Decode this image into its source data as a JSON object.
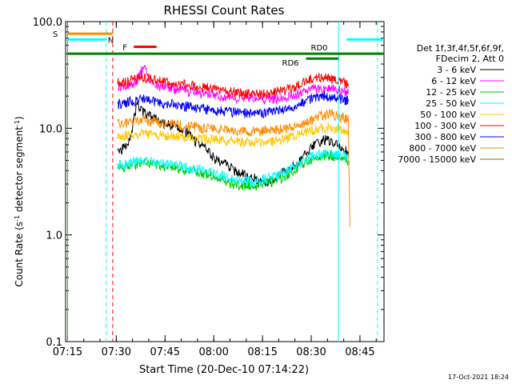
{
  "chart_data": {
    "type": "line",
    "title": "RHESSI Count Rates",
    "xlabel": "Start Time (20-Dec-10 07:14:22)",
    "ylabel": "Count Rate (s",
    "ylabel_sup": "-1",
    "ylabel_tail": " detector segment",
    "ylabel_sup2": "-1",
    "ylabel_close": ")",
    "yscale": "log",
    "ylim": [
      0.1,
      100
    ],
    "xlim_minutes": [
      0,
      98
    ],
    "yticks": [
      {
        "label": "0.1",
        "value": 0.1
      },
      {
        "label": "1.0",
        "value": 1
      },
      {
        "label": "10.0",
        "value": 10
      },
      {
        "label": "100.0",
        "value": 100
      }
    ],
    "xticks": [
      {
        "label": "07:15",
        "t": 0.6
      },
      {
        "label": "07:30",
        "t": 15.6
      },
      {
        "label": "07:45",
        "t": 30.6
      },
      {
        "label": "08:00",
        "t": 45.6
      },
      {
        "label": "08:15",
        "t": 60.6
      },
      {
        "label": "08:30",
        "t": 75.6
      },
      {
        "label": "08:45",
        "t": 90.6
      }
    ],
    "legend_header": [
      "Det 1f,3f,4f,5f,6f,9f,",
      "FDecim 2, Att 0"
    ],
    "series": [
      {
        "name": "3 - 6 keV",
        "color": "#000000",
        "t": [
          16,
          18,
          20,
          22,
          24,
          26,
          28,
          30,
          32,
          34,
          36,
          38,
          40,
          42,
          44,
          46,
          48,
          50,
          52,
          54,
          56,
          58,
          60,
          62,
          64,
          66,
          68,
          70,
          72,
          74,
          76,
          78,
          80,
          82,
          84,
          86,
          87
        ],
        "values": [
          6.2,
          6.5,
          8.5,
          17,
          14,
          13,
          12,
          11,
          11,
          10,
          9.5,
          9,
          7.5,
          7,
          6,
          5.2,
          4.8,
          4.5,
          4,
          3.8,
          3.5,
          3.4,
          3.3,
          3.2,
          3.4,
          3.7,
          4,
          4.4,
          5,
          5.8,
          6.8,
          7.5,
          7.8,
          7.3,
          6.8,
          6.2,
          6
        ]
      },
      {
        "name": "6 - 12 keV",
        "color": "#ff00ff",
        "t": [
          16,
          18,
          20,
          22,
          24,
          26,
          28,
          30,
          32,
          34,
          36,
          38,
          40,
          42,
          44,
          46,
          48,
          50,
          52,
          54,
          56,
          58,
          60,
          62,
          64,
          66,
          68,
          70,
          72,
          74,
          76,
          78,
          80,
          82,
          84,
          86,
          87
        ],
        "values": [
          24,
          25,
          26,
          28,
          38,
          27,
          25,
          24,
          24,
          23,
          23,
          22,
          22,
          21,
          21,
          20,
          20,
          20,
          19,
          19,
          19,
          19,
          18.5,
          18.5,
          19,
          19,
          20,
          20,
          21,
          22,
          23,
          24,
          24,
          24,
          23,
          22,
          21
        ]
      },
      {
        "name": "12 - 25 keV",
        "color": "#00c800",
        "t": [
          16,
          18,
          20,
          22,
          24,
          26,
          28,
          30,
          32,
          34,
          36,
          38,
          40,
          42,
          44,
          46,
          48,
          50,
          52,
          54,
          56,
          58,
          60,
          62,
          64,
          66,
          68,
          70,
          72,
          74,
          76,
          78,
          80,
          82,
          84,
          86,
          87
        ],
        "values": [
          4.2,
          4.3,
          4.4,
          4.6,
          4.7,
          4.6,
          4.5,
          4.4,
          4.3,
          4.2,
          4.1,
          4,
          3.9,
          3.8,
          3.7,
          3.5,
          3.3,
          3.1,
          3,
          2.9,
          2.9,
          2.9,
          3,
          3.1,
          3.2,
          3.4,
          3.6,
          4,
          4.4,
          4.8,
          5.2,
          5.5,
          5.6,
          5.5,
          5.3,
          5.1,
          5
        ]
      },
      {
        "name": "25 - 50 keV",
        "color": "#00ffff",
        "t": [
          16,
          18,
          20,
          22,
          24,
          26,
          28,
          30,
          32,
          34,
          36,
          38,
          40,
          42,
          44,
          46,
          48,
          50,
          52,
          54,
          56,
          58,
          60,
          62,
          64,
          66,
          68,
          70,
          72,
          74,
          76,
          78,
          80,
          82,
          84,
          86,
          87
        ],
        "values": [
          4.5,
          4.6,
          4.7,
          4.9,
          5,
          4.9,
          4.8,
          4.7,
          4.6,
          4.5,
          4.4,
          4.3,
          4.2,
          4.1,
          4,
          3.8,
          3.6,
          3.4,
          3.3,
          3.2,
          3.2,
          3.2,
          3.3,
          3.4,
          3.5,
          3.7,
          3.9,
          4.3,
          4.7,
          5.1,
          5.5,
          5.8,
          5.9,
          5.8,
          5.6,
          5.4,
          5.3
        ]
      },
      {
        "name": "50 - 100 keV",
        "color": "#ffc800",
        "t": [
          16,
          18,
          20,
          22,
          24,
          26,
          28,
          30,
          32,
          34,
          36,
          38,
          40,
          42,
          44,
          46,
          48,
          50,
          52,
          54,
          56,
          58,
          60,
          62,
          64,
          66,
          68,
          70,
          72,
          74,
          76,
          78,
          80,
          82,
          84,
          86,
          87
        ],
        "values": [
          8.5,
          8.6,
          8.7,
          8.8,
          8.9,
          8.8,
          8.7,
          8.6,
          8.5,
          8.4,
          8.3,
          8.2,
          8.1,
          8,
          7.9,
          7.8,
          7.7,
          7.6,
          7.5,
          7.4,
          7.4,
          7.4,
          7.4,
          7.5,
          7.6,
          7.8,
          8,
          8.4,
          8.8,
          9.2,
          9.6,
          10,
          10.2,
          10,
          9.8,
          9.5,
          9.3
        ]
      },
      {
        "name": "100 - 300 keV",
        "color": "#ff0000",
        "t": [
          16,
          18,
          20,
          22,
          24,
          26,
          28,
          30,
          32,
          34,
          36,
          38,
          40,
          42,
          44,
          46,
          48,
          50,
          52,
          54,
          56,
          58,
          60,
          62,
          64,
          66,
          68,
          70,
          72,
          74,
          76,
          78,
          80,
          82,
          84,
          86,
          87
        ],
        "values": [
          27,
          27,
          28,
          29,
          30,
          29,
          28,
          27,
          27,
          26,
          26,
          25,
          25,
          24,
          24,
          23,
          23,
          22,
          22,
          21,
          21,
          21,
          21,
          21,
          22,
          22,
          23,
          24,
          26,
          28,
          29,
          30,
          30,
          29,
          28,
          27,
          26
        ]
      },
      {
        "name": "300 - 800 keV",
        "color": "#0000ff",
        "t": [
          16,
          18,
          20,
          22,
          24,
          26,
          28,
          30,
          32,
          34,
          36,
          38,
          40,
          42,
          44,
          46,
          48,
          50,
          52,
          54,
          56,
          58,
          60,
          62,
          64,
          66,
          68,
          70,
          72,
          74,
          76,
          78,
          80,
          82,
          84,
          86,
          87
        ],
        "values": [
          17,
          17,
          18,
          18,
          19,
          18,
          18,
          17,
          17,
          17,
          16,
          16,
          16,
          15.5,
          15,
          15,
          14.5,
          14.5,
          14,
          14,
          14,
          14,
          14,
          14,
          14.5,
          15,
          15.5,
          16,
          17,
          18,
          19,
          20,
          20,
          19.5,
          19,
          18.5,
          18
        ]
      },
      {
        "name": "800 - 7000 keV",
        "color": "#ff8c00",
        "t": [
          16,
          18,
          20,
          22,
          24,
          26,
          28,
          30,
          32,
          34,
          36,
          38,
          40,
          42,
          44,
          46,
          48,
          50,
          52,
          54,
          56,
          58,
          60,
          62,
          64,
          66,
          68,
          70,
          72,
          74,
          76,
          78,
          80,
          82,
          84,
          86,
          87,
          87.5
        ],
        "values": [
          11,
          11,
          11.5,
          11.5,
          12,
          11.5,
          11.5,
          11,
          11,
          11,
          10.5,
          10.5,
          10.5,
          10,
          10,
          10,
          9.8,
          9.6,
          9.5,
          9.4,
          9.4,
          9.4,
          9.4,
          9.5,
          9.6,
          9.8,
          10,
          10.5,
          11,
          11.5,
          12,
          13,
          13.5,
          13.5,
          13,
          12.5,
          12,
          1.2
        ]
      },
      {
        "name": "7000 - 15000 keV",
        "color": "#966400",
        "t": [],
        "values": []
      }
    ],
    "attenuator_states": [
      {
        "label": "S",
        "color": "#ff8c00",
        "t0": 0.6,
        "t1": 14.5,
        "y": 77
      },
      {
        "label": "N",
        "color": "#00ffff",
        "t0": 0.6,
        "t1": 12.5,
        "y": 68
      },
      {
        "label": "F",
        "color": "#ff0000",
        "t0": 21,
        "t1": 28,
        "y": 58
      },
      {
        "label": "RD0",
        "color": "#008000",
        "t0": 0.6,
        "t1": 98,
        "y": 50
      },
      {
        "label": "RD6",
        "color": "#008000",
        "t0": 74,
        "t1": 84,
        "y": 45
      }
    ],
    "vertical_markers": [
      {
        "t": 0.6,
        "style": "solid",
        "color": "#00c800"
      },
      {
        "t": 12.5,
        "style": "dashed",
        "color": "#00ffff"
      },
      {
        "t": 14.5,
        "style": "dashed",
        "color": "#ff0000"
      },
      {
        "t": 84,
        "style": "solid",
        "color": "#00ffff"
      },
      {
        "t": 96,
        "style": "dashed",
        "color": "#00ffff"
      }
    ],
    "extra_mark_N_label": "N"
  },
  "footer": {
    "timestamp": "17-Oct-2021 18:24"
  }
}
